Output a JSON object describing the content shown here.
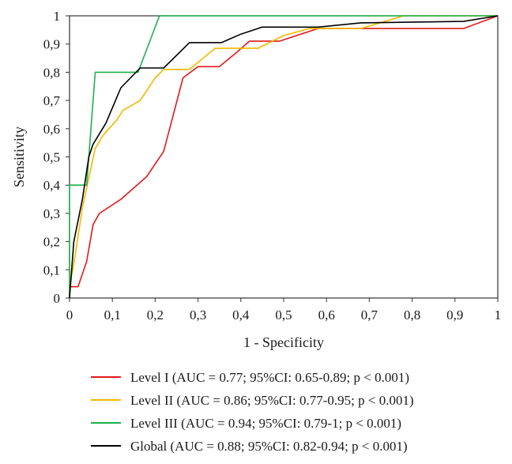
{
  "chart_data": {
    "type": "line",
    "title": "",
    "xlabel": "1 - Specificity",
    "ylabel": "Sensitivity",
    "xlim": [
      0,
      1
    ],
    "ylim": [
      0,
      1
    ],
    "xticks": [
      "0",
      "0,1",
      "0,2",
      "0,3",
      "0,4",
      "0,5",
      "0,6",
      "0,7",
      "0,8",
      "0,9",
      "1"
    ],
    "yticks": [
      "0",
      "0,1",
      "0,2",
      "0,3",
      "0,4",
      "0,5",
      "0,6",
      "0,7",
      "0,8",
      "0,9",
      "1"
    ],
    "grid": false,
    "legend_position": "bottom",
    "series": [
      {
        "name": "Level I (AUC = 0.77; 95%CI: 0.65-0.89; p < 0.001)",
        "color": "#e31a1c",
        "points": [
          [
            0,
            0
          ],
          [
            0,
            0.04
          ],
          [
            0.02,
            0.04
          ],
          [
            0.04,
            0.13
          ],
          [
            0.055,
            0.26
          ],
          [
            0.07,
            0.3
          ],
          [
            0.12,
            0.35
          ],
          [
            0.18,
            0.43
          ],
          [
            0.22,
            0.52
          ],
          [
            0.265,
            0.78
          ],
          [
            0.3,
            0.82
          ],
          [
            0.35,
            0.82
          ],
          [
            0.39,
            0.87
          ],
          [
            0.42,
            0.91
          ],
          [
            0.49,
            0.91
          ],
          [
            0.53,
            0.93
          ],
          [
            0.58,
            0.955
          ],
          [
            0.92,
            0.955
          ],
          [
            1,
            1
          ]
        ]
      },
      {
        "name": "Level II (AUC = 0.86; 95%CI: 0.77-0.95; p < 0.001)",
        "color": "#f5b800",
        "points": [
          [
            0,
            0
          ],
          [
            0,
            0.04
          ],
          [
            0.01,
            0.12
          ],
          [
            0.03,
            0.32
          ],
          [
            0.04,
            0.39
          ],
          [
            0.06,
            0.53
          ],
          [
            0.08,
            0.58
          ],
          [
            0.11,
            0.63
          ],
          [
            0.125,
            0.665
          ],
          [
            0.165,
            0.7
          ],
          [
            0.2,
            0.78
          ],
          [
            0.22,
            0.81
          ],
          [
            0.28,
            0.81
          ],
          [
            0.34,
            0.885
          ],
          [
            0.44,
            0.885
          ],
          [
            0.5,
            0.93
          ],
          [
            0.56,
            0.955
          ],
          [
            0.68,
            0.955
          ],
          [
            0.78,
            1
          ],
          [
            1,
            1
          ]
        ]
      },
      {
        "name": "Level III (AUC = 0.94; 95%CI: 0.79-1; p < 0.001)",
        "color": "#1db04b",
        "points": [
          [
            0,
            0
          ],
          [
            0,
            0.4
          ],
          [
            0.04,
            0.4
          ],
          [
            0.06,
            0.8
          ],
          [
            0.16,
            0.8
          ],
          [
            0.21,
            1
          ],
          [
            1,
            1
          ]
        ]
      },
      {
        "name": "Global (AUC = 0.88; 95%CI: 0.82-0.94; p < 0.001)",
        "color": "#000000",
        "points": [
          [
            0,
            0
          ],
          [
            0.005,
            0.1
          ],
          [
            0.01,
            0.2
          ],
          [
            0.03,
            0.35
          ],
          [
            0.045,
            0.5
          ],
          [
            0.055,
            0.545
          ],
          [
            0.085,
            0.62
          ],
          [
            0.12,
            0.745
          ],
          [
            0.165,
            0.815
          ],
          [
            0.22,
            0.815
          ],
          [
            0.28,
            0.905
          ],
          [
            0.355,
            0.905
          ],
          [
            0.4,
            0.935
          ],
          [
            0.45,
            0.96
          ],
          [
            0.58,
            0.96
          ],
          [
            0.68,
            0.975
          ],
          [
            0.92,
            0.98
          ],
          [
            1,
            1
          ]
        ]
      }
    ]
  }
}
